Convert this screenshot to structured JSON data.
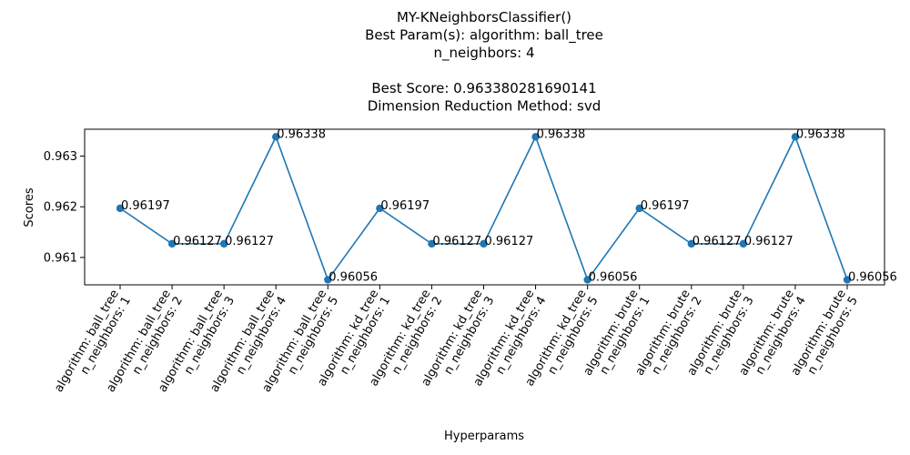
{
  "chart_data": {
    "type": "line",
    "title_lines": [
      "MY-KNeighborsClassifier()",
      "Best Param(s): algorithm: ball_tree",
      "n_neighbors: 4",
      "",
      "Best Score: 0.963380281690141",
      "Dimension Reduction Method: svd"
    ],
    "xlabel": "Hyperparams",
    "ylabel": "Scores",
    "ylim": [
      0.96046,
      0.96353
    ],
    "yticks": [
      "0.961",
      "0.962",
      "0.963"
    ],
    "ytick_values": [
      0.961,
      0.962,
      0.963
    ],
    "grid": false,
    "color": "#1f77b4",
    "categories": [
      [
        "algorithm: ball_tree",
        "n_neighbors: 1"
      ],
      [
        "algorithm: ball_tree",
        "n_neighbors: 2"
      ],
      [
        "algorithm: ball_tree",
        "n_neighbors: 3"
      ],
      [
        "algorithm: ball_tree",
        "n_neighbors: 4"
      ],
      [
        "algorithm: ball_tree",
        "n_neighbors: 5"
      ],
      [
        "algorithm: kd_tree",
        "n_neighbors: 1"
      ],
      [
        "algorithm: kd_tree",
        "n_neighbors: 2"
      ],
      [
        "algorithm: kd_tree",
        "n_neighbors: 3"
      ],
      [
        "algorithm: kd_tree",
        "n_neighbors: 4"
      ],
      [
        "algorithm: kd_tree",
        "n_neighbors: 5"
      ],
      [
        "algorithm: brute",
        "n_neighbors: 1"
      ],
      [
        "algorithm: brute",
        "n_neighbors: 2"
      ],
      [
        "algorithm: brute",
        "n_neighbors: 3"
      ],
      [
        "algorithm: brute",
        "n_neighbors: 4"
      ],
      [
        "algorithm: brute",
        "n_neighbors: 5"
      ]
    ],
    "values": [
      0.96197,
      0.96127,
      0.96127,
      0.96338,
      0.96056,
      0.96197,
      0.96127,
      0.96127,
      0.96338,
      0.96056,
      0.96197,
      0.96127,
      0.96127,
      0.96338,
      0.96056
    ],
    "point_labels": [
      "0.96197",
      "0.96127",
      "0.96127",
      "0.96338",
      "0.96056",
      "0.96197",
      "0.96127",
      "0.96127",
      "0.96338",
      "0.96056",
      "0.96197",
      "0.96127",
      "0.96127",
      "0.96338",
      "0.96056"
    ]
  }
}
